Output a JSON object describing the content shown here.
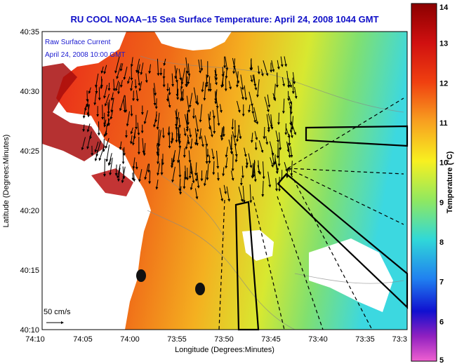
{
  "title": "RU COOL  NOAA–15  Sea Surface Temperature:  April 24, 2008 1044 GMT",
  "legend": {
    "line1": "Raw Surface Current",
    "line2": "April 24, 2008 10:00 GMT"
  },
  "scale_label": "50 cm/s",
  "x_axis": {
    "label": "Longitude (Degrees:Minutes)",
    "ticks": [
      "74:10",
      "74:05",
      "74:00",
      "73:55",
      "73:50",
      "73:45",
      "73:40",
      "73:35",
      "73:3"
    ]
  },
  "y_axis": {
    "label": "Latitude (Degrees:Minutes)",
    "ticks": [
      "40:35",
      "40:30",
      "40:25",
      "40:20",
      "40:15",
      "40:10"
    ]
  },
  "colorbar": {
    "label": "Temperature (°C)",
    "ticks": [
      "14",
      "13",
      "12",
      "11",
      "10",
      "9",
      "8",
      "7",
      "6",
      "5"
    ],
    "range": [
      5,
      14
    ]
  },
  "colors": {
    "title": "#1010c8",
    "land": "#ffffff",
    "warm": "#e8231a",
    "cool": "#3cd8e0"
  }
}
